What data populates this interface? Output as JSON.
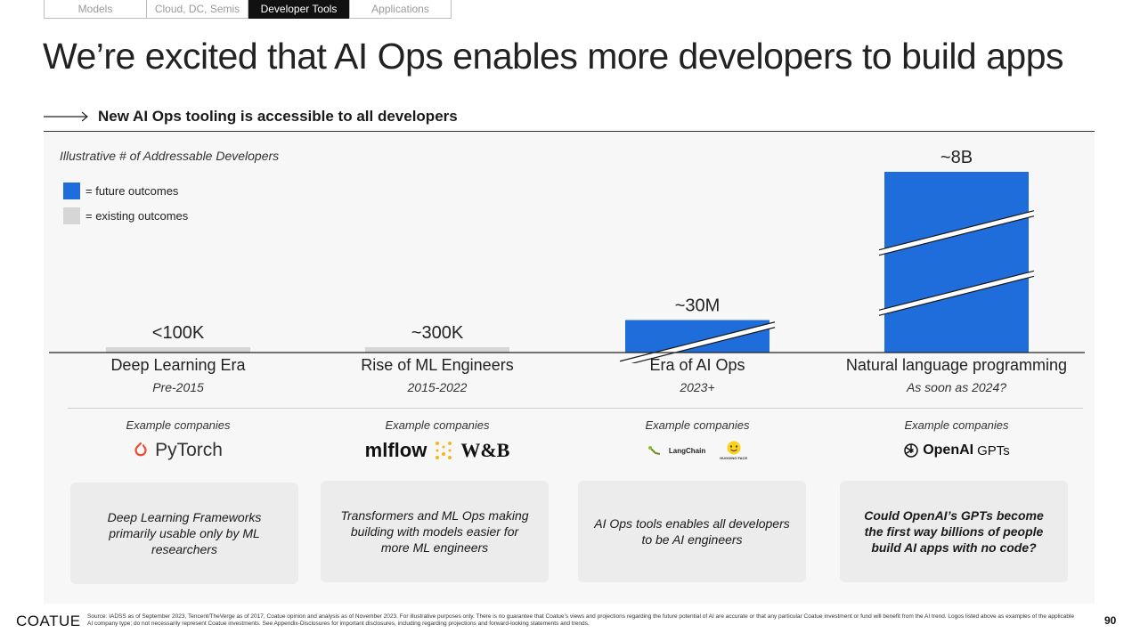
{
  "tabs": [
    {
      "label": "Models",
      "active": false
    },
    {
      "label": "Cloud, DC, Semis",
      "active": false
    },
    {
      "label": "Developer Tools",
      "active": true
    },
    {
      "label": "Applications",
      "active": false
    }
  ],
  "title": "We’re excited that AI Ops enables more developers to build apps",
  "subheading": "New AI Ops tooling is accessible to all developers",
  "colors": {
    "future": "#1f6ddb",
    "existing": "#d6d6d6"
  },
  "chart_data": {
    "type": "bar",
    "title": "Illustrative # of Addressable Developers",
    "categories": [
      "Deep Learning Era",
      "Rise of ML Engineers",
      "Era of AI Ops",
      "Natural language programming"
    ],
    "category_dates": [
      "Pre-2015",
      "2015-2022",
      "2023+",
      "As soon as 2024?"
    ],
    "values": [
      100000,
      300000,
      30000000,
      8000000000
    ],
    "value_labels": [
      "<100K",
      "~300K",
      "~30M",
      "~8B"
    ],
    "outcome": [
      "existing",
      "existing",
      "future",
      "future"
    ],
    "axis_breaks": [
      0,
      0,
      1,
      2
    ],
    "legend": [
      {
        "label": "= future outcomes",
        "key": "future"
      },
      {
        "label": "= existing outcomes",
        "key": "existing"
      }
    ],
    "legend_position": "top-left",
    "scale": "illustrative",
    "grid": false
  },
  "examples": {
    "label": "Example companies",
    "logos": [
      [
        "PyTorch"
      ],
      [
        "mlflow",
        "W&B"
      ],
      [
        "LangChain",
        "HUGGING FACE"
      ],
      [
        "OpenAI",
        "GPTs"
      ]
    ]
  },
  "cards": [
    {
      "text": "Deep Learning Frameworks primarily usable only by ML researchers",
      "bold": false
    },
    {
      "text": "Transformers and ML Ops making building with models easier for more ML engineers",
      "bold": false
    },
    {
      "text": "AI Ops tools enables all developers to be AI engineers",
      "bold": false
    },
    {
      "text": "Could OpenAI’s GPTs become the first way billions of people build AI apps with no code?",
      "bold": true
    }
  ],
  "footer": {
    "logo": "COATUE",
    "source": "Source: IADSS as of September 2023, Tencent/TheVerge as of 2017, Coatue opinion and analysis as of November 2023. For illustrative purposes only. There is no guarantee that Coatue’s views and projections regarding the future potential of AI are accurate or that any particular Coatue investment or fund will benefit from the AI trend. Logos listed above as examples of the applicable AI company type; do not necessarily represent Coatue investments. See Appendix-Disclosures for important disclosures, including regarding projections and forward-looking statements and trends.",
    "page": "90"
  }
}
